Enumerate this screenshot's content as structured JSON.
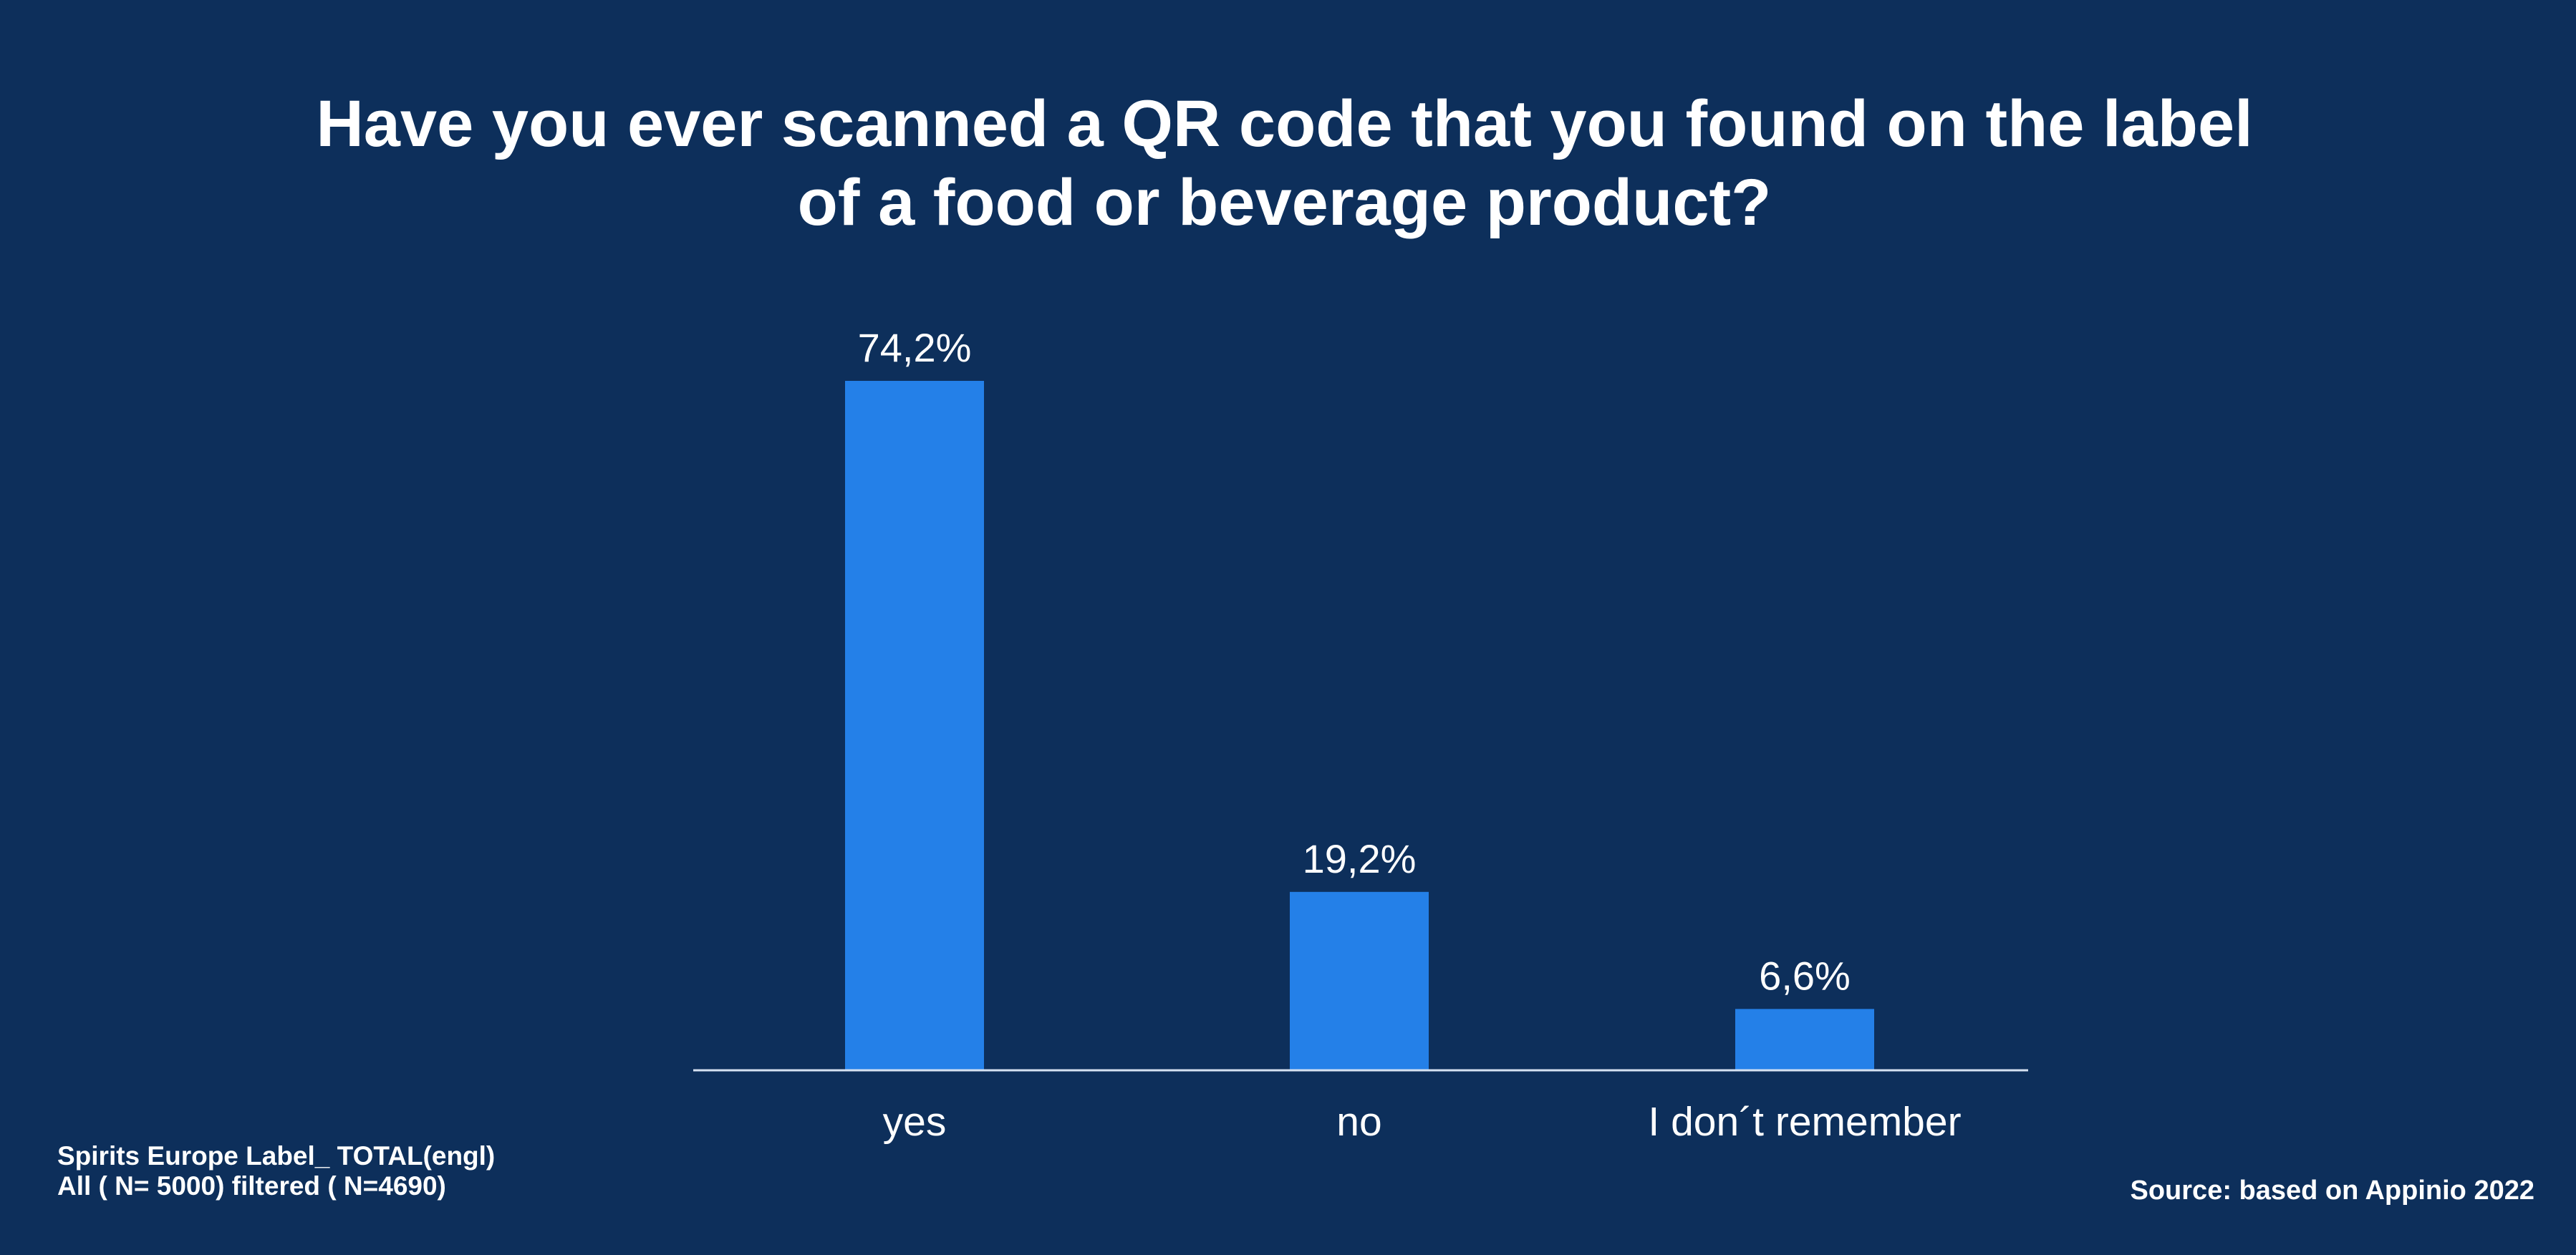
{
  "title_lines": [
    "Have you ever scanned a QR  code that you found on the label",
    "of a food  or beverage product?"
  ],
  "chart_data": {
    "type": "bar",
    "title": "Have you ever scanned a QR  code that you found on the label of a food  or beverage product?",
    "categories": [
      "yes",
      "no",
      "I don´t remember"
    ],
    "values": [
      74.2,
      19.2,
      6.6
    ],
    "value_labels": [
      "74,2%",
      "19,2%",
      "6,6%"
    ],
    "ylim": [
      0,
      74.2
    ],
    "grid": false,
    "bar_color": "#2480e8",
    "axis_color": "#d6e2f2"
  },
  "footnote": {
    "line1": "Spirits Europe Label_ TOTAL(engl)",
    "line2": "All ( N= 5000) filtered ( N=4690)"
  },
  "source": "Source: based on Appinio 2022",
  "colors": {
    "background": "#0d2f5b",
    "text": "#ffffff"
  }
}
